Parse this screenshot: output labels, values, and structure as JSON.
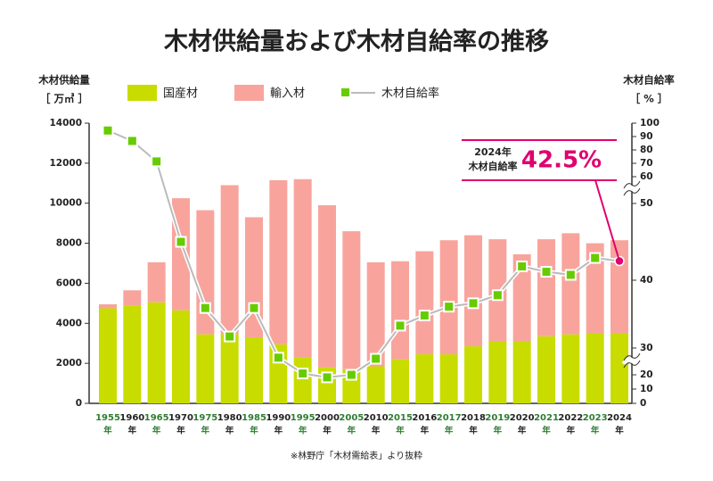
{
  "chart_data": {
    "type": "bar-line",
    "title": "木材供給量および木材自給率の推移",
    "y_label": "木材供給量",
    "y_unit": "［ 万㎥ ］",
    "y2_label": "木材自給率",
    "y2_unit": "［ % ］",
    "source": "※林野庁「木材需給表」より抜粋",
    "category_suffix": "年",
    "categories": [
      "1955",
      "1960",
      "1965",
      "1970",
      "1975",
      "1980",
      "1985",
      "1990",
      "1995",
      "2000",
      "2005",
      "2010",
      "2015",
      "2016",
      "2017",
      "2018",
      "2019",
      "2020",
      "2021",
      "2022",
      "2023",
      "2024"
    ],
    "series": [
      {
        "name": "国産材",
        "color": "#c8dc00",
        "stacked": true,
        "values": [
          4750,
          4900,
          5050,
          4650,
          3450,
          3450,
          3300,
          2950,
          2300,
          1800,
          1700,
          1850,
          2200,
          2450,
          2450,
          2850,
          3100,
          3100,
          3350,
          3450,
          3500,
          3500
        ]
      },
      {
        "name": "輸入材",
        "color": "#f8a49c",
        "stacked": true,
        "values": [
          200,
          750,
          2000,
          5600,
          6200,
          7450,
          6000,
          8200,
          8900,
          8100,
          6900,
          5200,
          4900,
          5150,
          5700,
          5550,
          5100,
          4350,
          4850,
          5050,
          4500,
          4650
        ]
      },
      {
        "name": "木材自給率",
        "color": "#bbbbbb",
        "marker_color": "#66cc00",
        "axis": "y2",
        "values": [
          94.5,
          86.7,
          71.4,
          45.0,
          35.9,
          31.7,
          35.9,
          26.4,
          20.5,
          18.2,
          20.0,
          26.0,
          33.3,
          34.8,
          36.1,
          36.6,
          37.8,
          41.8,
          41.1,
          40.7,
          42.9,
          42.5
        ],
        "value_labels": [
          null,
          null,
          null,
          null,
          null,
          null,
          null,
          null,
          null,
          null,
          null,
          null,
          null,
          null,
          null,
          null,
          null,
          null,
          null,
          null,
          null,
          "42.5%"
        ]
      }
    ],
    "annotation": {
      "year": "2024年",
      "text": "木材自給率",
      "color": "#e0006e"
    },
    "ylim": [
      0,
      14000
    ],
    "yticks": [
      0,
      2000,
      4000,
      6000,
      8000,
      10000,
      12000,
      14000
    ],
    "y2lim": [
      0,
      100
    ],
    "y2ticks": [
      0,
      10,
      20,
      30,
      40,
      50,
      60,
      70,
      80,
      90,
      100
    ],
    "y2_breaks": true
  }
}
